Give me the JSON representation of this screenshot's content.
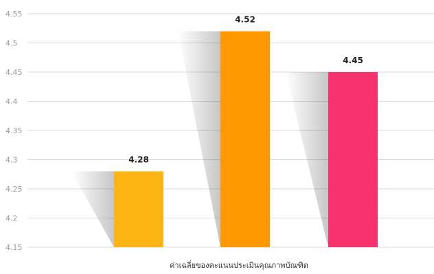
{
  "chart_data": {
    "type": "bar",
    "categories": [
      "",
      "",
      ""
    ],
    "values": [
      4.28,
      4.52,
      4.45
    ],
    "data_labels": [
      "4.28",
      "4.52",
      "4.45"
    ],
    "colors": [
      "#FDB515",
      "#FF9800",
      "#F8326F"
    ],
    "title": "",
    "xlabel": "ค่าเฉลี่ยของคะแนนประเมินคุณภาพบัณฑิต",
    "ylabel": "",
    "ylim": [
      4.15,
      4.55
    ],
    "y_ticks": [
      4.15,
      4.2,
      4.25,
      4.3,
      4.35,
      4.4,
      4.45,
      4.5,
      4.55
    ],
    "y_tick_labels": [
      "4.15",
      "4.2",
      "4.25",
      "4.3",
      "4.35",
      "4.4",
      "4.45",
      "4.5",
      "4.55"
    ],
    "grid": true,
    "legend": "none",
    "gridline_color": "#d9d9d9"
  }
}
